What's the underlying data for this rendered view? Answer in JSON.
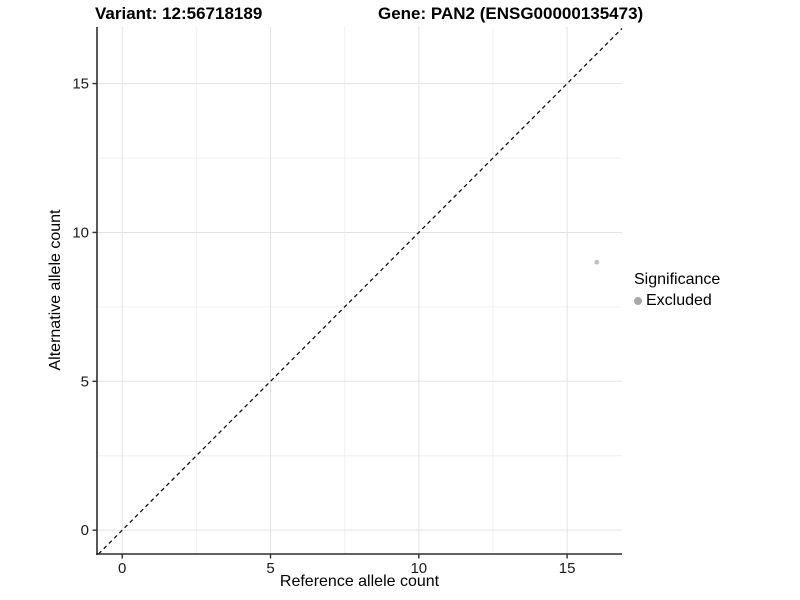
{
  "header": {
    "variant_title": "Variant: 12:56718189",
    "gene_title": "Gene: PAN2 (ENSG00000135473)"
  },
  "chart_data": {
    "type": "scatter",
    "title": "Variant: 12:56718189   Gene: PAN2 (ENSG00000135473)",
    "xlabel": "Reference allele count",
    "ylabel": "Alternative allele count",
    "xlim": [
      -0.85,
      16.85
    ],
    "ylim": [
      -0.8,
      16.9
    ],
    "x_major_ticks": [
      0,
      5,
      10,
      15
    ],
    "x_minor_ticks": [
      2.5,
      7.5,
      12.5
    ],
    "y_major_ticks": [
      0,
      5,
      10,
      15
    ],
    "y_minor_ticks": [
      2.5,
      7.5,
      12.5
    ],
    "grid": true,
    "reference_line": {
      "equation": "y = x",
      "style": "dashed",
      "color": "#111111"
    },
    "series": [
      {
        "name": "Excluded",
        "marker": "circle",
        "color": "#c0c0c0",
        "points": [
          {
            "x": 16,
            "y": 9
          }
        ]
      }
    ],
    "legend": {
      "title": "Significance",
      "position": "right",
      "items": [
        {
          "label": "Excluded",
          "marker": "circle",
          "color": "#a8a8a8"
        }
      ]
    }
  },
  "colors": {
    "background": "#ffffff",
    "axis_line": "#2f2f2f",
    "tick_mark": "#2f2f2f",
    "grid_major": "#e3e3e3",
    "grid_minor": "#f0f0f0",
    "tick_label": "#1a1a1a"
  }
}
